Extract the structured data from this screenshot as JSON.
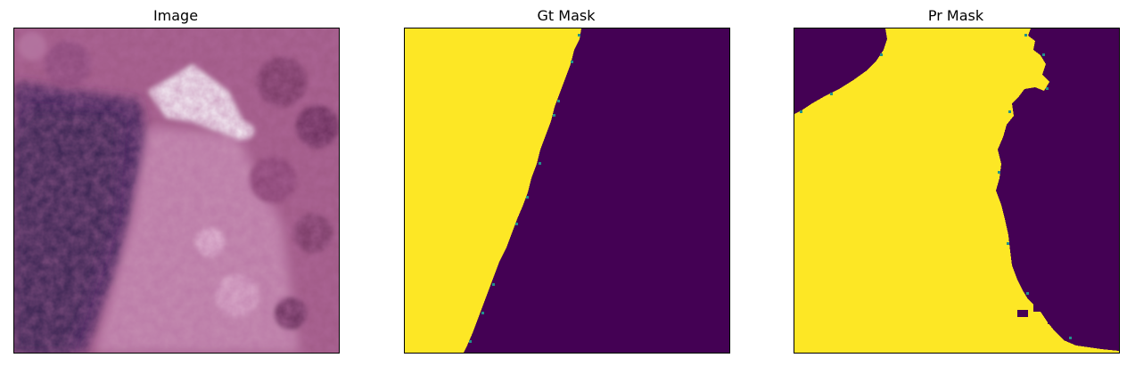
{
  "panels": [
    {
      "title": "Image"
    },
    {
      "title": "Gt Mask"
    },
    {
      "title": "Pr Mask"
    }
  ],
  "colors": {
    "mask_foreground": "#fde725",
    "mask_background": "#440154",
    "tissue_dark": "#3a1f52",
    "tissue_mid": "#8e4a78",
    "tissue_light": "#d9a0c2",
    "highlight": "#f2eef4"
  }
}
